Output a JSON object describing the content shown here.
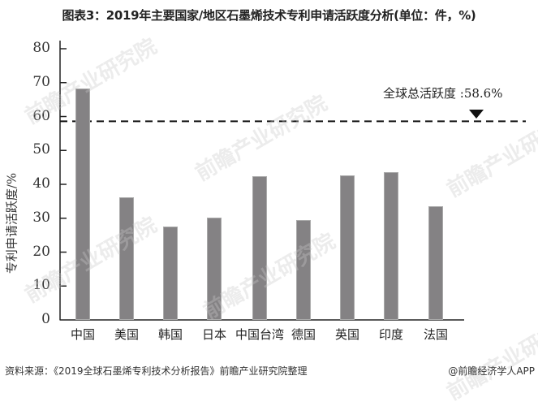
{
  "title": "图表3：2019年主要国家/地区石墨烯技术专利申请活跃度分析(单位：件，%)",
  "chart_data": {
    "type": "bar",
    "title": "图表3：2019年主要国家/地区石墨烯技术专利申请活跃度分析(单位：件，%)",
    "xlabel": "",
    "ylabel": "专利申请活跃度/%",
    "ylim": [
      0,
      80
    ],
    "yticks": [
      0,
      10,
      20,
      30,
      40,
      50,
      60,
      70,
      80
    ],
    "grid": false,
    "legend": null,
    "categories": [
      "中国",
      "美国",
      "韩国",
      "日本",
      "中国台湾",
      "德国",
      "英国",
      "印度",
      "法国"
    ],
    "values": [
      68.3,
      36.2,
      27.5,
      30.2,
      42.3,
      29.5,
      42.6,
      43.5,
      33.5
    ],
    "reference_line": {
      "value": 58.6,
      "label": "全球总活跃度 :58.6%",
      "style": "dashed"
    },
    "bar_color": "#848284"
  },
  "footer": {
    "source": "资料来源：《2019全球石墨烯专利技术分析报告》前瞻产业研究院整理",
    "credit": "@前瞻经济学人APP"
  },
  "watermark": "前瞻产业研究院"
}
